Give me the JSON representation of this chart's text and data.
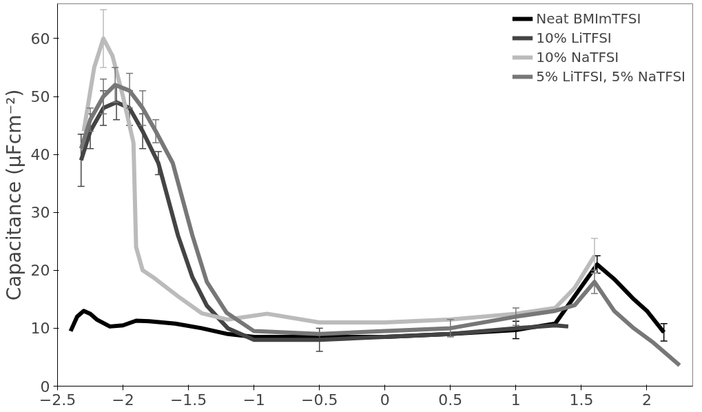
{
  "chart_data": {
    "type": "line",
    "ylabel": "Capacitance (μFcm⁻²)",
    "xlim": [
      -2.5,
      2.35
    ],
    "ylim": [
      0,
      66
    ],
    "xticks": [
      {
        "value": -2.5,
        "label": "−2.5"
      },
      {
        "value": -2,
        "label": "−2"
      },
      {
        "value": -1.5,
        "label": "−1.5"
      },
      {
        "value": -1,
        "label": "−1"
      },
      {
        "value": -0.5,
        "label": "−0.5"
      },
      0,
      0.5,
      1,
      1.5,
      2
    ],
    "yticks": [
      0,
      10,
      20,
      30,
      40,
      50,
      60
    ],
    "grid": false,
    "legend": "top right",
    "line_style": "solid",
    "series": [
      {
        "name": "Neat BMImTFSI",
        "color": "#000000",
        "x": [
          -2.4,
          -2.35,
          -2.3,
          -2.25,
          -2.2,
          -2.1,
          -2.0,
          -1.9,
          -1.8,
          -1.6,
          -1.4,
          -1.2,
          -1.0,
          -0.5,
          0,
          0.5,
          1.0,
          1.3,
          1.62,
          1.75,
          1.9,
          2.0,
          2.13
        ],
        "values": [
          9.5,
          12,
          13,
          12.5,
          11.5,
          10.3,
          10.5,
          11.3,
          11.2,
          10.8,
          10,
          9,
          8.5,
          8.5,
          8.5,
          9,
          9.7,
          10.8,
          21,
          18.5,
          15,
          13,
          9.3
        ],
        "errors": [
          null,
          null,
          null,
          null,
          null,
          null,
          null,
          null,
          null,
          null,
          null,
          null,
          null,
          null,
          null,
          null,
          1.5,
          null,
          1.5,
          null,
          null,
          null,
          1.5
        ]
      },
      {
        "name": "10% LiTFSI",
        "color": "#444444",
        "x": [
          -2.32,
          -2.25,
          -2.15,
          -2.05,
          -1.95,
          -1.85,
          -1.73,
          -1.58,
          -1.47,
          -1.36,
          -1.2,
          -1.0,
          -0.5,
          0,
          0.5,
          1.0,
          1.3,
          1.4
        ],
        "values": [
          39,
          44,
          48,
          49,
          48,
          44,
          38.5,
          26,
          18.8,
          13.9,
          10,
          8,
          8,
          8.5,
          9,
          10,
          10.5,
          10.3
        ],
        "errors": [
          4.5,
          3,
          3,
          3,
          3,
          3,
          2,
          null,
          null,
          null,
          null,
          null,
          2,
          null,
          null,
          null,
          null,
          null
        ]
      },
      {
        "name": "10% NaTFSI",
        "color": "#bbbbbb",
        "x": [
          -2.3,
          -2.22,
          -2.15,
          -2.08,
          -2.0,
          -1.92,
          -1.9,
          -1.85,
          -1.77,
          -1.58,
          -1.4,
          -1.2,
          -0.9,
          -0.5,
          0,
          0.5,
          1.0,
          1.3,
          1.45,
          1.6
        ],
        "values": [
          44,
          55,
          60,
          57,
          50,
          42,
          24,
          20,
          18.8,
          15.5,
          12.6,
          11.5,
          12.5,
          11,
          11,
          11.5,
          12.5,
          13.5,
          17,
          22.5
        ],
        "errors": [
          null,
          null,
          5,
          null,
          null,
          null,
          null,
          null,
          null,
          null,
          null,
          null,
          null,
          null,
          null,
          null,
          null,
          null,
          null,
          3
        ]
      },
      {
        "name": "5% LiTFSI, 5% NaTFSI",
        "color": "#777777",
        "x": [
          -2.32,
          -2.25,
          -2.15,
          -2.06,
          -1.95,
          -1.85,
          -1.75,
          -1.62,
          -1.47,
          -1.36,
          -1.21,
          -1.0,
          -0.5,
          0,
          0.5,
          1.0,
          1.3,
          1.45,
          1.6,
          1.75,
          1.9,
          2.05,
          2.25
        ],
        "values": [
          41,
          46,
          50,
          52,
          51,
          48,
          44,
          38.5,
          26,
          18,
          12.7,
          9.5,
          9,
          9.5,
          10,
          12,
          13,
          14,
          18,
          13,
          10,
          7.5,
          3.6
        ],
        "errors": [
          null,
          2,
          3,
          3,
          3,
          3,
          2,
          null,
          null,
          null,
          null,
          null,
          null,
          null,
          1.5,
          1.5,
          null,
          null,
          2,
          null,
          null,
          null,
          null
        ]
      }
    ]
  }
}
